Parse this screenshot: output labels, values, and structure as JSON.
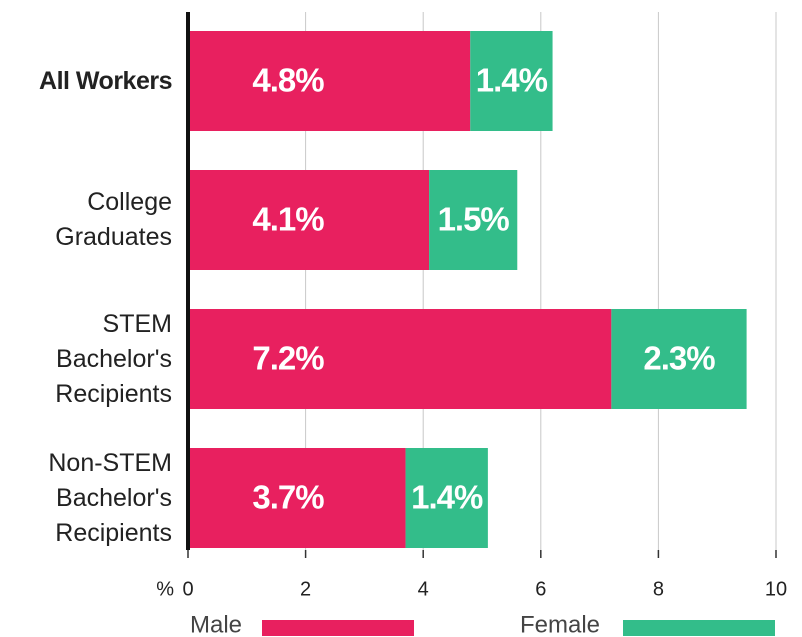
{
  "chart_data": {
    "type": "stacked_bar_horizontal",
    "categories": [
      "All Workers",
      "College Graduates",
      "STEM Bachelor's Recipients",
      "Non-STEM Bachelor's Recipients"
    ],
    "series": [
      {
        "name": "Male",
        "color": "#e8205f",
        "values": [
          4.8,
          4.1,
          7.2,
          3.7
        ],
        "value_labels": [
          "4.8%",
          "4.1%",
          "7.2%",
          "3.7%"
        ]
      },
      {
        "name": "Female",
        "color": "#33bd8a",
        "values": [
          1.4,
          1.5,
          2.3,
          1.4
        ],
        "value_labels": [
          "1.4%",
          "1.5%",
          "2.3%",
          "1.4%"
        ]
      }
    ],
    "x_label": "%",
    "xlim": [
      0,
      10
    ],
    "xticks": [
      0,
      2,
      4,
      6,
      8,
      10
    ],
    "grid": true
  }
}
